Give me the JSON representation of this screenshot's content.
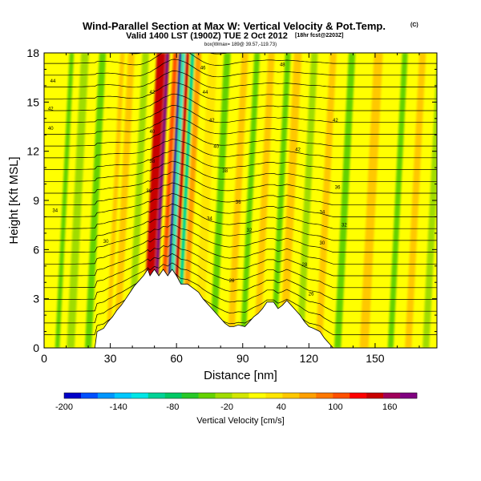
{
  "chart_data": {
    "type": "heatmap",
    "title": "Wind-Parallel Section at Max W: Vertical Velocity & Pot.Temp.",
    "title_mark": "(C)",
    "subtitle": "Valid 1400 LST (1900Z) TUE 2 Oct 2012",
    "subtitle_note": "[18hr fcst@2203Z]",
    "info_line": "box(Wmax= 189@ 39.57,-119.73)",
    "xlabel": "Distance [nm]",
    "ylabel": "Height [Kft MSL]",
    "xlim": [
      0,
      178
    ],
    "ylim": [
      0,
      18
    ],
    "xticks": [
      0,
      30,
      60,
      90,
      120,
      150
    ],
    "yticks": [
      0,
      3,
      6,
      9,
      12,
      15,
      18
    ],
    "colorbar": {
      "label": "Vertical Velocity [cm/s]",
      "range": [
        -200,
        190
      ],
      "ticks": [
        -200,
        -140,
        -80,
        -20,
        40,
        100,
        160
      ],
      "colors": [
        "#0000c8",
        "#0050ff",
        "#0096ff",
        "#00c8ff",
        "#00e6e6",
        "#00d296",
        "#00c864",
        "#28c828",
        "#64d200",
        "#a0dc00",
        "#d2e600",
        "#ffff00",
        "#ffe600",
        "#ffc800",
        "#ffa000",
        "#ff7800",
        "#ff5000",
        "#ff0000",
        "#c80000",
        "#a0005a",
        "#800080"
      ]
    },
    "terrain": {
      "x": [
        0,
        23,
        24,
        27,
        29,
        31,
        33,
        35,
        37,
        39,
        41,
        43,
        45,
        47,
        48,
        50,
        52,
        54,
        56,
        58,
        60,
        62,
        65,
        68,
        70,
        72,
        74,
        76,
        78,
        80,
        82,
        84,
        86,
        88,
        91,
        93,
        95,
        97,
        99,
        101,
        104,
        106,
        108,
        110,
        112,
        114,
        116,
        118,
        120,
        122,
        125,
        127,
        129,
        131,
        178
      ],
      "height": [
        0,
        0,
        1,
        1.2,
        1.6,
        1.9,
        2.3,
        2.6,
        3.0,
        3.4,
        3.8,
        4.1,
        4.4,
        4.8,
        4.4,
        4.8,
        4.4,
        4.8,
        4.4,
        4.8,
        4.4,
        3.9,
        3.9,
        3.6,
        3.4,
        3.0,
        2.7,
        2.4,
        2.1,
        1.8,
        1.5,
        1.3,
        1.3,
        1.4,
        1.3,
        1.6,
        1.9,
        2.1,
        2.4,
        2.8,
        2.8,
        2.4,
        2.6,
        2.9,
        2.6,
        2.3,
        2.0,
        1.6,
        1.3,
        1.2,
        1.0,
        0.6,
        0.3,
        0,
        0
      ]
    },
    "w_bands": [
      {
        "x": 46.5,
        "w": 4.0,
        "v": 150
      },
      {
        "x": 49.5,
        "w": 1.6,
        "v": 185
      },
      {
        "x": 53.0,
        "w": 2.0,
        "v": 100
      },
      {
        "x": 55.2,
        "w": 1.2,
        "v": -190
      },
      {
        "x": 56.8,
        "w": 1.2,
        "v": -110
      },
      {
        "x": 58.5,
        "w": 1.6,
        "v": 140
      },
      {
        "x": 60.8,
        "w": 1.8,
        "v": -90
      },
      {
        "x": 63.5,
        "w": 2.5,
        "v": 60
      },
      {
        "x": 29.0,
        "w": 2.0,
        "v": 55
      },
      {
        "x": 33.0,
        "w": 3.0,
        "v": 45
      },
      {
        "x": 6.0,
        "w": 2.0,
        "v": -35
      },
      {
        "x": 12.0,
        "w": 3.5,
        "v": -30
      },
      {
        "x": 20.0,
        "w": 3.0,
        "v": -40
      },
      {
        "x": 39.5,
        "w": 3.0,
        "v": -30
      },
      {
        "x": 70.0,
        "w": 4.0,
        "v": 40
      },
      {
        "x": 76.5,
        "w": 3.0,
        "v": -40
      },
      {
        "x": 84.5,
        "w": 3.0,
        "v": 50
      },
      {
        "x": 90.0,
        "w": 2.5,
        "v": -35
      },
      {
        "x": 96.5,
        "w": 3.0,
        "v": 55
      },
      {
        "x": 104.0,
        "w": 2.5,
        "v": -45
      },
      {
        "x": 108.5,
        "w": 3.5,
        "v": 55
      },
      {
        "x": 116.0,
        "w": 3.0,
        "v": -30
      },
      {
        "x": 124.5,
        "w": 3.0,
        "v": 50
      },
      {
        "x": 133.0,
        "w": 3.0,
        "v": -35
      },
      {
        "x": 145.0,
        "w": 4.0,
        "v": 45
      },
      {
        "x": 157.0,
        "w": 2.5,
        "v": -40
      },
      {
        "x": 165.0,
        "w": 3.0,
        "v": 45
      },
      {
        "x": 173.0,
        "w": 3.0,
        "v": -30
      }
    ],
    "contour_labels": [
      {
        "x": 4,
        "y": 16.2,
        "t": "44"
      },
      {
        "x": 3,
        "y": 14.5,
        "t": "42"
      },
      {
        "x": 3,
        "y": 13.3,
        "t": "40"
      },
      {
        "x": 5,
        "y": 8.3,
        "t": "34"
      },
      {
        "x": 28,
        "y": 6.4,
        "t": "30"
      },
      {
        "x": 49,
        "y": 15.5,
        "t": "42"
      },
      {
        "x": 49,
        "y": 13.1,
        "t": "40"
      },
      {
        "x": 47.5,
        "y": 9.5,
        "t": "36"
      },
      {
        "x": 49,
        "y": 11.3,
        "t": "38"
      },
      {
        "x": 72,
        "y": 17.0,
        "t": "46"
      },
      {
        "x": 73,
        "y": 15.5,
        "t": "44"
      },
      {
        "x": 76,
        "y": 13.8,
        "t": "42"
      },
      {
        "x": 78,
        "y": 12.2,
        "t": "40"
      },
      {
        "x": 82,
        "y": 10.7,
        "t": "38"
      },
      {
        "x": 88,
        "y": 8.8,
        "t": "36"
      },
      {
        "x": 75,
        "y": 7.8,
        "t": "34"
      },
      {
        "x": 93,
        "y": 7.1,
        "t": "32"
      },
      {
        "x": 108,
        "y": 17.2,
        "t": "48"
      },
      {
        "x": 115,
        "y": 12.0,
        "t": "42"
      },
      {
        "x": 132,
        "y": 13.8,
        "t": "42"
      },
      {
        "x": 133,
        "y": 9.7,
        "t": "36"
      },
      {
        "x": 126,
        "y": 8.2,
        "t": "34"
      },
      {
        "x": 136,
        "y": 7.4,
        "t": "32"
      },
      {
        "x": 126,
        "y": 6.3,
        "t": "30"
      },
      {
        "x": 118,
        "y": 5.0,
        "t": "28"
      },
      {
        "x": 121,
        "y": 3.2,
        "t": "26"
      },
      {
        "x": 85,
        "y": 4.0,
        "t": "28"
      }
    ]
  }
}
